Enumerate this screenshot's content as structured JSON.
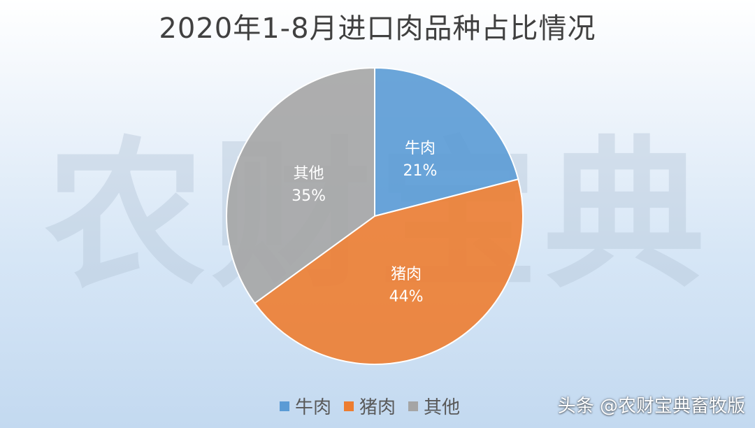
{
  "chart_data": {
    "type": "pie",
    "title": "2020年1-8月进口肉品种占比情况",
    "categories": [
      "牛肉",
      "猪肉",
      "其他"
    ],
    "values": [
      21,
      44,
      35
    ],
    "value_labels": [
      "21%",
      "44%",
      "35%"
    ],
    "colors": [
      "#5b9bd5",
      "#ed7d31",
      "#a5a5a5"
    ],
    "legend": {
      "placement": "bottom",
      "entries": [
        "牛肉",
        "猪肉",
        "其他"
      ]
    }
  },
  "watermark_text": "农财宝典",
  "source_caption": "头条 @农财宝典畜牧版"
}
